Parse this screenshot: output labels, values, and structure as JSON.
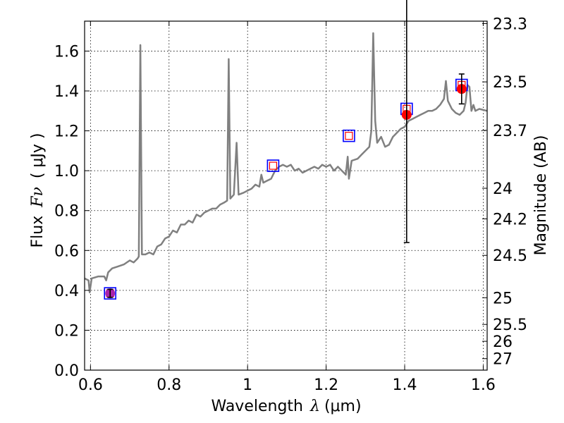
{
  "chart_data": {
    "type": "line",
    "xlabel_text": "Wavelength",
    "xlabel_symbol": "λ",
    "xlabel_unit": "(μm)",
    "ylabel_text": "Flux",
    "ylabel_symbol": "Fν",
    "ylabel_unit": "( μJy )",
    "y2label": "Magnitude (AB)",
    "xlim": [
      0.585,
      1.61
    ],
    "ylim": [
      0.0,
      1.75
    ],
    "xticks": [
      {
        "value": 0.6,
        "label": "0.6"
      },
      {
        "value": 0.8,
        "label": "0.8"
      },
      {
        "value": 1.0,
        "label": "1"
      },
      {
        "value": 1.2,
        "label": "1.2"
      },
      {
        "value": 1.4,
        "label": "1.4"
      },
      {
        "value": 1.6,
        "label": "1.6"
      }
    ],
    "yticks": [
      {
        "value": 0.0,
        "label": "0.0"
      },
      {
        "value": 0.2,
        "label": "0.2"
      },
      {
        "value": 0.4,
        "label": "0.4"
      },
      {
        "value": 0.6,
        "label": "0.6"
      },
      {
        "value": 0.8,
        "label": "0.8"
      },
      {
        "value": 1.0,
        "label": "1.0"
      },
      {
        "value": 1.2,
        "label": "1.2"
      },
      {
        "value": 1.4,
        "label": "1.4"
      },
      {
        "value": 1.6,
        "label": "1.6"
      }
    ],
    "y2ticks": [
      {
        "value": 23.3,
        "label": "23.3"
      },
      {
        "value": 23.5,
        "label": "23.5"
      },
      {
        "value": 23.7,
        "label": "23.7"
      },
      {
        "value": 24.0,
        "label": "24"
      },
      {
        "value": 24.2,
        "label": "24.2"
      },
      {
        "value": 24.5,
        "label": "24.5"
      },
      {
        "value": 25.0,
        "label": "25"
      },
      {
        "value": 25.5,
        "label": "25.5"
      },
      {
        "value": 26.0,
        "label": "26"
      },
      {
        "value": 27.0,
        "label": "27"
      }
    ],
    "grid": "dotted",
    "colors": {
      "model": "#808080",
      "observed": "#ff0000",
      "model_photometry": "#0000ff",
      "errorbar": "#000000",
      "first_point_fill": "#aa22aa"
    },
    "model_spectrum": [
      [
        0.585,
        0.46
      ],
      [
        0.595,
        0.45
      ],
      [
        0.598,
        0.39
      ],
      [
        0.603,
        0.46
      ],
      [
        0.62,
        0.47
      ],
      [
        0.635,
        0.47
      ],
      [
        0.64,
        0.45
      ],
      [
        0.645,
        0.49
      ],
      [
        0.655,
        0.51
      ],
      [
        0.67,
        0.52
      ],
      [
        0.685,
        0.53
      ],
      [
        0.7,
        0.55
      ],
      [
        0.71,
        0.54
      ],
      [
        0.72,
        0.56
      ],
      [
        0.723,
        0.57
      ],
      [
        0.727,
        1.63
      ],
      [
        0.731,
        0.58
      ],
      [
        0.74,
        0.58
      ],
      [
        0.75,
        0.59
      ],
      [
        0.76,
        0.58
      ],
      [
        0.77,
        0.62
      ],
      [
        0.78,
        0.63
      ],
      [
        0.79,
        0.66
      ],
      [
        0.8,
        0.67
      ],
      [
        0.81,
        0.7
      ],
      [
        0.82,
        0.69
      ],
      [
        0.83,
        0.73
      ],
      [
        0.84,
        0.73
      ],
      [
        0.85,
        0.75
      ],
      [
        0.86,
        0.74
      ],
      [
        0.87,
        0.78
      ],
      [
        0.88,
        0.77
      ],
      [
        0.89,
        0.79
      ],
      [
        0.9,
        0.8
      ],
      [
        0.91,
        0.81
      ],
      [
        0.92,
        0.81
      ],
      [
        0.93,
        0.83
      ],
      [
        0.94,
        0.84
      ],
      [
        0.948,
        0.85
      ],
      [
        0.952,
        1.56
      ],
      [
        0.956,
        0.86
      ],
      [
        0.965,
        0.88
      ],
      [
        0.972,
        1.14
      ],
      [
        0.977,
        0.88
      ],
      [
        0.99,
        0.89
      ],
      [
        1.0,
        0.9
      ],
      [
        1.01,
        0.91
      ],
      [
        1.02,
        0.93
      ],
      [
        1.03,
        0.92
      ],
      [
        1.035,
        0.98
      ],
      [
        1.04,
        0.94
      ],
      [
        1.05,
        0.95
      ],
      [
        1.06,
        0.96
      ],
      [
        1.07,
        1.0
      ],
      [
        1.08,
        1.02
      ],
      [
        1.09,
        1.03
      ],
      [
        1.1,
        1.02
      ],
      [
        1.11,
        1.03
      ],
      [
        1.12,
        1.0
      ],
      [
        1.13,
        1.01
      ],
      [
        1.14,
        0.99
      ],
      [
        1.15,
        1.0
      ],
      [
        1.16,
        1.01
      ],
      [
        1.17,
        1.02
      ],
      [
        1.18,
        1.01
      ],
      [
        1.19,
        1.03
      ],
      [
        1.2,
        1.02
      ],
      [
        1.21,
        1.03
      ],
      [
        1.22,
        1.0
      ],
      [
        1.23,
        1.02
      ],
      [
        1.24,
        1.0
      ],
      [
        1.25,
        0.98
      ],
      [
        1.255,
        1.07
      ],
      [
        1.258,
        0.96
      ],
      [
        1.265,
        1.05
      ],
      [
        1.28,
        1.06
      ],
      [
        1.29,
        1.08
      ],
      [
        1.3,
        1.1
      ],
      [
        1.31,
        1.12
      ],
      [
        1.315,
        1.2
      ],
      [
        1.32,
        1.69
      ],
      [
        1.325,
        1.25
      ],
      [
        1.33,
        1.14
      ],
      [
        1.34,
        1.17
      ],
      [
        1.35,
        1.12
      ],
      [
        1.36,
        1.13
      ],
      [
        1.37,
        1.17
      ],
      [
        1.38,
        1.19
      ],
      [
        1.39,
        1.21
      ],
      [
        1.4,
        1.22
      ],
      [
        1.41,
        1.25
      ],
      [
        1.42,
        1.26
      ],
      [
        1.43,
        1.27
      ],
      [
        1.44,
        1.28
      ],
      [
        1.45,
        1.29
      ],
      [
        1.46,
        1.3
      ],
      [
        1.47,
        1.3
      ],
      [
        1.48,
        1.31
      ],
      [
        1.49,
        1.33
      ],
      [
        1.5,
        1.36
      ],
      [
        1.505,
        1.45
      ],
      [
        1.51,
        1.35
      ],
      [
        1.52,
        1.31
      ],
      [
        1.53,
        1.29
      ],
      [
        1.54,
        1.28
      ],
      [
        1.55,
        1.3
      ],
      [
        1.555,
        1.34
      ],
      [
        1.56,
        1.43
      ],
      [
        1.565,
        1.42
      ],
      [
        1.57,
        1.3
      ],
      [
        1.575,
        1.33
      ],
      [
        1.58,
        1.3
      ],
      [
        1.59,
        1.31
      ],
      [
        1.61,
        1.3
      ]
    ],
    "model_photometry": [
      {
        "x": 0.65,
        "y": 0.385
      },
      {
        "x": 1.065,
        "y": 1.025
      },
      {
        "x": 1.258,
        "y": 1.175
      },
      {
        "x": 1.405,
        "y": 1.31
      },
      {
        "x": 1.545,
        "y": 1.43
      }
    ],
    "observed": [
      {
        "x": 0.65,
        "y": 0.385,
        "yerr": 0.02
      },
      {
        "x": 1.405,
        "y": 1.28,
        "yerr": 0.64
      },
      {
        "x": 1.545,
        "y": 1.41,
        "yerr": 0.075
      }
    ]
  }
}
